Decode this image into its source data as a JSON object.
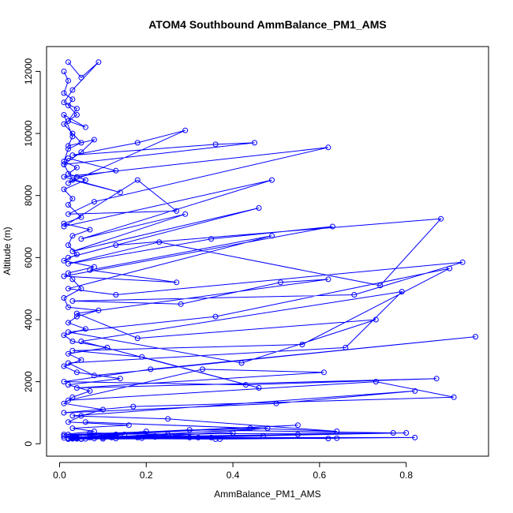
{
  "chart_data": {
    "type": "line",
    "title": "ATOM4 Southbound AmmBalance_PM1_AMS",
    "xlabel": "AmmBalance_PM1_AMS",
    "ylabel": "Altitude (m)",
    "xlim": [
      -0.03,
      0.99
    ],
    "ylim": [
      -400,
      12800
    ],
    "xticks": [
      {
        "value": 0.0,
        "label": "0.0"
      },
      {
        "value": 0.2,
        "label": "0.2"
      },
      {
        "value": 0.4,
        "label": "0.4"
      },
      {
        "value": 0.6,
        "label": "0.6"
      },
      {
        "value": 0.8,
        "label": "0.8"
      }
    ],
    "yticks": [
      {
        "value": 0,
        "label": "0"
      },
      {
        "value": 2000,
        "label": "2000"
      },
      {
        "value": 4000,
        "label": "4000"
      },
      {
        "value": 6000,
        "label": "6000"
      },
      {
        "value": 8000,
        "label": "8000"
      },
      {
        "value": 10000,
        "label": "10000"
      },
      {
        "value": 12000,
        "label": "12000"
      }
    ],
    "grid": false,
    "marker": "open-circle",
    "color": "#0000ff",
    "series": [
      {
        "x": [
          0.02,
          0.05,
          0.09,
          0.03,
          0.01,
          0.04,
          0.02,
          0.06,
          0.01,
          0.03,
          0.02,
          0.08,
          0.05,
          0.01,
          0.02,
          0.13,
          0.04,
          0.02,
          0.29,
          0.18,
          0.03,
          0.36,
          0.45,
          0.01,
          0.03,
          0.14,
          0.01,
          0.62,
          0.08,
          0.02,
          0.27,
          0.18,
          0.01,
          0.49,
          0.05,
          0.29,
          0.03,
          0.46,
          0.02,
          0.13,
          0.88,
          0.74,
          0.23,
          0.02,
          0.35,
          0.63,
          0.01,
          0.27,
          0.07,
          0.49,
          0.02,
          0.13,
          0.93,
          0.68,
          0.03,
          0.28,
          0.51,
          0.62,
          0.04,
          0.18,
          0.73,
          0.42,
          0.02,
          0.36,
          0.9,
          0.56,
          0.03,
          0.19,
          0.46,
          0.05,
          0.79,
          0.66,
          0.02,
          0.08,
          0.96,
          0.21,
          0.01,
          0.43,
          0.87,
          0.04,
          0.61,
          0.33,
          0.02,
          0.73,
          0.91,
          0.17,
          0.01,
          0.5,
          0.82,
          0.03,
          0.25,
          0.64,
          0.06,
          0.44,
          0.02,
          0.77,
          0.3,
          0.01,
          0.55,
          0.13,
          0.03,
          0.82,
          0.36,
          0.02,
          0.62,
          0.12,
          0.04,
          0.48,
          0.26,
          0.01,
          0.8,
          0.19,
          0.03,
          0.37,
          0.08,
          0.02,
          0.22,
          0.1,
          0.03
        ],
        "y": [
          12300,
          11800,
          12300,
          11400,
          11000,
          10800,
          10400,
          10200,
          10600,
          9900,
          9600,
          9800,
          9400,
          9000,
          9200,
          8800,
          8600,
          8400,
          10100,
          9700,
          9300,
          9650,
          9700,
          9000,
          8500,
          8100,
          8600,
          9550,
          7800,
          7400,
          7500,
          8500,
          7000,
          8500,
          6600,
          7400,
          6200,
          7600,
          6000,
          6400,
          7250,
          5100,
          6500,
          5800,
          6600,
          7000,
          5400,
          5200,
          5600,
          6700,
          5000,
          4800,
          5850,
          4800,
          4600,
          4500,
          5200,
          5300,
          4200,
          3400,
          4000,
          2600,
          3600,
          4100,
          5650,
          3200,
          3000,
          2800,
          1800,
          3300,
          4900,
          3100,
          2600,
          2200,
          3450,
          2400,
          2000,
          1900,
          2100,
          1800,
          2300,
          2400,
          1400,
          2000,
          1500,
          1200,
          1000,
          1300,
          1700,
          900,
          800,
          400,
          700,
          500,
          300,
          350,
          450,
          250,
          600,
          300,
          200,
          200,
          150,
          180,
          170,
          200,
          160,
          500,
          250,
          190,
          350,
          180,
          200,
          150,
          170,
          180,
          220,
          200,
          170
        ]
      },
      {
        "x": [
          0.01,
          0.02,
          0.01,
          0.03,
          0.02,
          0.04,
          0.01,
          0.03,
          0.05,
          0.02,
          0.01,
          0.04,
          0.02,
          0.06,
          0.01,
          0.03,
          0.02,
          0.05,
          0.01,
          0.07,
          0.03,
          0.02,
          0.04,
          0.01,
          0.08,
          0.02,
          0.03,
          0.05,
          0.01,
          0.02,
          0.09,
          0.04,
          0.02,
          0.06,
          0.01,
          0.03,
          0.11,
          0.02,
          0.05,
          0.01,
          0.04,
          0.14,
          0.02,
          0.07,
          0.03,
          0.01,
          0.1,
          0.05,
          0.02,
          0.16,
          0.03,
          0.08,
          0.01,
          0.12,
          0.04,
          0.2,
          0.02,
          0.07,
          0.25,
          0.03,
          0.1,
          0.32,
          0.05,
          0.15,
          0.02,
          0.4,
          0.07,
          0.22,
          0.04,
          0.55,
          0.1,
          0.3,
          0.02,
          0.64,
          0.18,
          0.06,
          0.47,
          0.03,
          0.13,
          0.35,
          0.05
        ],
        "y": [
          12000,
          11700,
          11300,
          11100,
          10900,
          10600,
          10300,
          10000,
          9700,
          9500,
          9100,
          8900,
          8700,
          8500,
          8200,
          7900,
          7700,
          7300,
          7100,
          6900,
          6700,
          6400,
          6100,
          5900,
          5700,
          5500,
          5300,
          5000,
          4700,
          4400,
          4300,
          4100,
          3900,
          3700,
          3500,
          3300,
          3100,
          2900,
          2700,
          2500,
          2300,
          2100,
          1900,
          1700,
          1500,
          1300,
          1100,
          900,
          700,
          600,
          500,
          400,
          300,
          250,
          200,
          400,
          180,
          350,
          300,
          160,
          250,
          200,
          150,
          300,
          170,
          350,
          200,
          250,
          180,
          300,
          160,
          200,
          150,
          180,
          200,
          160,
          250,
          180,
          170,
          200,
          160
        ]
      }
    ]
  }
}
